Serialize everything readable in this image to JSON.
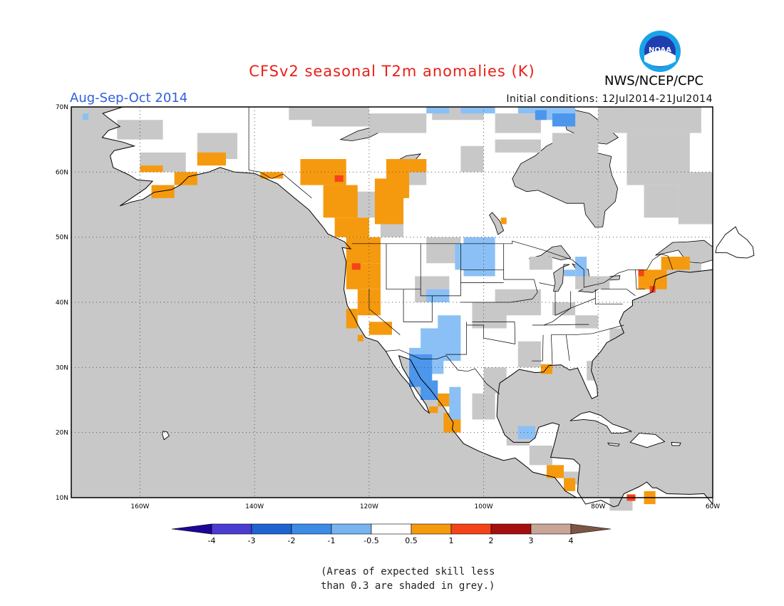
{
  "header": {
    "title": "CFSv2 seasonal T2m anomalies (K)",
    "season": "Aug-Sep-Oct 2014",
    "initial_conditions": "Initial conditions: 12Jul2014-21Jul2014",
    "organization": "NWS/NCEP/CPC",
    "logo_text": "NOAA"
  },
  "map": {
    "lon_range": [
      -172,
      -60
    ],
    "lat_range": [
      10,
      70
    ],
    "lat_labels": [
      "70N",
      "60N",
      "50N",
      "40N",
      "30N",
      "20N",
      "10N"
    ],
    "lon_labels": [
      "160W",
      "140W",
      "120W",
      "100W",
      "80W",
      "60W"
    ],
    "colors": {
      "land_nodata": "#ffffff",
      "low_skill": "#c8c8c8",
      "neg_05_1": "#8ac0f5",
      "neg_1_2": "#4c96ec",
      "pos_05_1": "#f59a0e",
      "pos_1_2": "#f54319"
    }
  },
  "colorbar": {
    "labels": [
      "-4",
      "-3",
      "-2",
      "-1",
      "-0.5",
      "0.5",
      "1",
      "2",
      "3",
      "4"
    ],
    "colors": [
      "#1e0596",
      "#4b3cd2",
      "#1e64d2",
      "#3c8ce6",
      "#78b4f0",
      "#ffffff",
      "#f59a0e",
      "#f54319",
      "#a50f0f",
      "#c8a596",
      "#7d5546"
    ]
  },
  "footnote": {
    "line1": "(Areas of expected skill less",
    "line2": "than 0.3 are shaded in grey.)"
  }
}
